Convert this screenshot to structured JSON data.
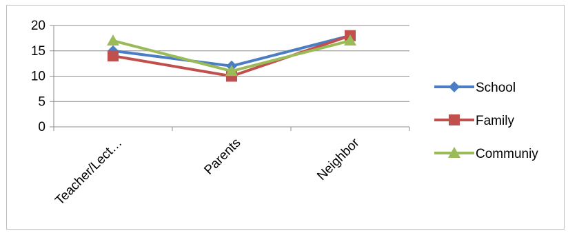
{
  "chart_data": {
    "type": "line",
    "categories": [
      "Teacher/Lect…",
      "Parents",
      "Neighbor"
    ],
    "series": [
      {
        "name": "School",
        "values": [
          15,
          12,
          18
        ],
        "color": "#4a7dc4",
        "marker": "diamond"
      },
      {
        "name": "Family",
        "values": [
          14,
          10,
          18
        ],
        "color": "#c0504d",
        "marker": "square"
      },
      {
        "name": "Communiy",
        "values": [
          17,
          11,
          17
        ],
        "color": "#9bbb59",
        "marker": "triangle"
      }
    ],
    "ylim": [
      0,
      20
    ],
    "yticks": [
      0,
      5,
      10,
      15,
      20
    ],
    "grid": true,
    "legend_position": "right"
  }
}
